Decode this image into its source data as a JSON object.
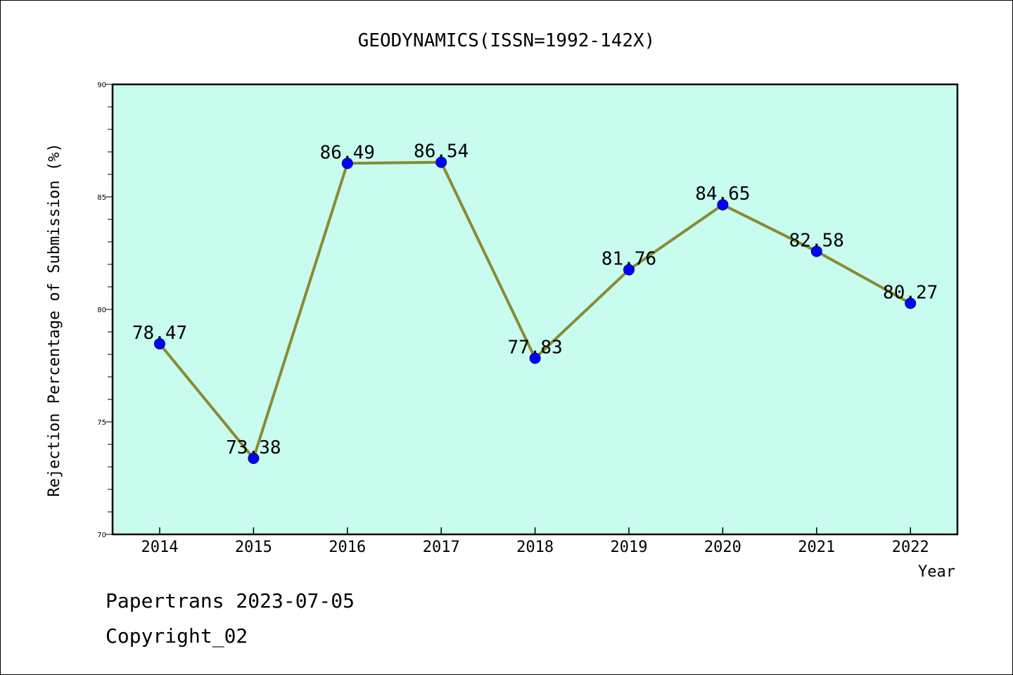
{
  "chart_data": {
    "type": "line",
    "title": "GEODYNAMICS(ISSN=1992-142X)",
    "xlabel": "Year",
    "ylabel": "Rejection Percentage of Submission (%)",
    "ylim": [
      70,
      90
    ],
    "yticks": [
      70,
      75,
      80,
      85,
      90
    ],
    "categories": [
      "2014",
      "2015",
      "2016",
      "2017",
      "2018",
      "2019",
      "2020",
      "2021",
      "2022"
    ],
    "values": [
      78.47,
      73.38,
      86.49,
      86.54,
      77.83,
      81.76,
      84.65,
      82.58,
      80.27
    ],
    "data_labels": [
      "78.47",
      "73.38",
      "86.49",
      "86.54",
      "77.83",
      "81.76",
      "84.65",
      "82.58",
      "80.27"
    ],
    "grid": false,
    "colors": {
      "plot_background": "#c8fcee",
      "line": "#8b8a35",
      "marker": "#0000ff"
    }
  },
  "footer": {
    "line1": "Papertrans 2023-07-05",
    "line2": "Copyright_02"
  }
}
